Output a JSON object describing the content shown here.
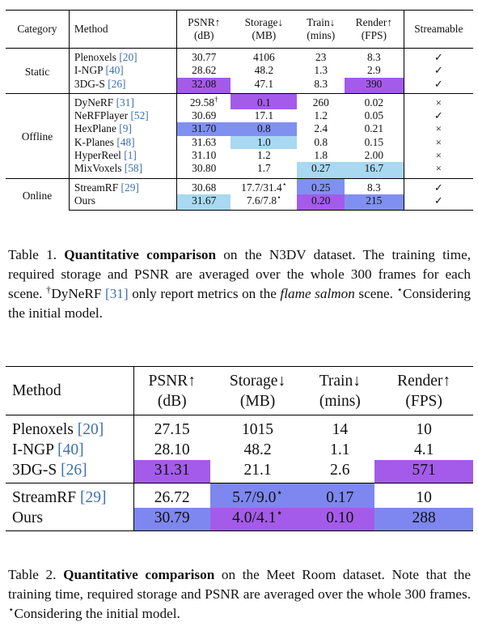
{
  "table1": {
    "headers": {
      "category": "Category",
      "method": "Method",
      "psnr": [
        "PSNR↑",
        "(dB)"
      ],
      "storage": [
        "Storage↓",
        "(MB)"
      ],
      "train": [
        "Train↓",
        "(mins)"
      ],
      "render": [
        "Render↑",
        "(FPS)"
      ],
      "streamable": "Streamable"
    },
    "groups": [
      {
        "category": "Static",
        "rows": [
          {
            "method": "Plenoxels",
            "ref": "[20]",
            "psnr": "30.77",
            "storage": "4106",
            "train": "23",
            "render": "8.3",
            "stream": "✓"
          },
          {
            "method": "I-NGP",
            "ref": "[40]",
            "psnr": "28.62",
            "storage": "48.2",
            "train": "1.3",
            "render": "2.9",
            "stream": "✓"
          },
          {
            "method": "3DG-S",
            "ref": "[26]",
            "psnr": "32.08",
            "storage": "47.1",
            "train": "8.3",
            "render": "390",
            "stream": "✓"
          }
        ]
      },
      {
        "category": "Offline",
        "rows": [
          {
            "method": "DyNeRF",
            "ref": "[31]",
            "psnr": "29.58",
            "psnr_sup": "†",
            "storage": "0.1",
            "train": "260",
            "render": "0.02",
            "stream": "×"
          },
          {
            "method": "NeRFPlayer",
            "ref": "[52]",
            "psnr": "30.69",
            "storage": "17.1",
            "train": "1.2",
            "render": "0.05",
            "stream": "✓"
          },
          {
            "method": "HexPlane",
            "ref": "[9]",
            "psnr": "31.70",
            "storage": "0.8",
            "train": "2.4",
            "render": "0.21",
            "stream": "×"
          },
          {
            "method": "K-Planes",
            "ref": "[48]",
            "psnr": "31.63",
            "storage": "1.0",
            "train": "0.8",
            "render": "0.15",
            "stream": "×"
          },
          {
            "method": "HyperReel",
            "ref": "[1]",
            "psnr": "31.10",
            "storage": "1.2",
            "train": "1.8",
            "render": "2.00",
            "stream": "×"
          },
          {
            "method": "MixVoxels",
            "ref": "[58]",
            "psnr": "30.80",
            "storage": "1.7",
            "train": "0.27",
            "render": "16.7",
            "stream": "×"
          }
        ]
      },
      {
        "category": "Online",
        "rows": [
          {
            "method": "StreamRF",
            "ref": "[29]",
            "psnr": "30.68",
            "storage": "17.7/31.4",
            "storage_sup": "⋆",
            "train": "0.25",
            "render": "8.3",
            "stream": "✓"
          },
          {
            "method": "Ours",
            "ref": "",
            "psnr": "31.67",
            "storage": "7.6/7.8",
            "storage_sup": "⋆",
            "train": "0.20",
            "render": "215",
            "stream": "✓"
          }
        ]
      }
    ]
  },
  "caption1": {
    "label": "Table 1.",
    "bold": "Quantitative comparison",
    "text1": " on the N3DV dataset. The training time, required storage and PSNR are averaged over the whole 300 frames for each scene. ",
    "dagger": "†",
    "text2": "DyNeRF ",
    "ref": "[31]",
    "text3": " only report metrics on the ",
    "italic": "flame salmon",
    "text4": " scene. ",
    "star": "⋆",
    "text5": "Considering the initial model."
  },
  "table2": {
    "headers": {
      "method": "Method",
      "psnr": [
        "PSNR↑",
        "(dB)"
      ],
      "storage": [
        "Storage↓",
        "(MB)"
      ],
      "train": [
        "Train↓",
        "(mins)"
      ],
      "render": [
        "Render↑",
        "(FPS)"
      ]
    },
    "groups": [
      [
        {
          "method": "Plenoxels",
          "ref": "[20]",
          "psnr": "27.15",
          "storage": "1015",
          "train": "14",
          "render": "10"
        },
        {
          "method": "I-NGP",
          "ref": "[40]",
          "psnr": "28.10",
          "storage": "48.2",
          "train": "1.1",
          "render": "4.1"
        },
        {
          "method": "3DG-S",
          "ref": "[26]",
          "psnr": "31.31",
          "storage": "21.1",
          "train": "2.6",
          "render": "571"
        }
      ],
      [
        {
          "method": "StreamRF",
          "ref": "[29]",
          "psnr": "26.72",
          "storage": "5.7/9.0",
          "storage_sup": "⋆",
          "train": "0.17",
          "render": "10"
        },
        {
          "method": "Ours",
          "ref": "",
          "psnr": "30.79",
          "storage": "4.0/4.1",
          "storage_sup": "⋆",
          "train": "0.10",
          "render": "288"
        }
      ]
    ]
  },
  "caption2": {
    "label": "Table 2.",
    "bold": "Quantitative comparison",
    "text1": " on the Meet Room dataset. Note that the training time, required storage and PSNR are averaged over the whole 300 frames. ",
    "star": "⋆",
    "text2": "Considering the initial model."
  },
  "colors": {
    "best": "#a45be9",
    "second": "#8090f0",
    "third": "#a9d8f1",
    "ref": "#3d6fb0"
  }
}
